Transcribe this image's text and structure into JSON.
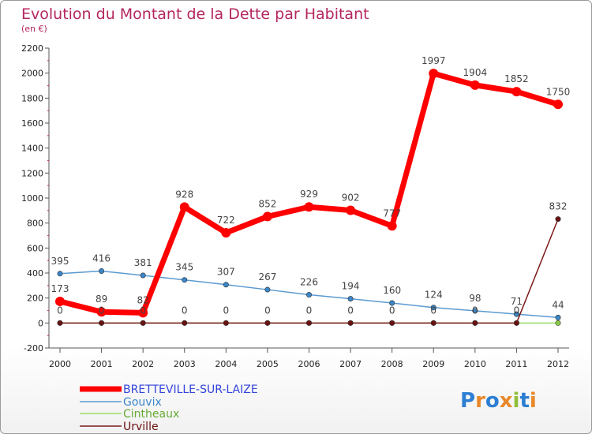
{
  "chart_data": {
    "type": "line",
    "title": "Evolution du Montant de la Dette par Habitant",
    "subtitle": "(en €)",
    "x": [
      "2000",
      "2001",
      "2002",
      "2003",
      "2004",
      "2005",
      "2006",
      "2007",
      "2008",
      "2009",
      "2010",
      "2011",
      "2012"
    ],
    "ylim": [
      -200,
      2200
    ],
    "yticks": [
      -200,
      0,
      200,
      400,
      600,
      800,
      1000,
      1200,
      1400,
      1600,
      1800,
      2000,
      2200
    ],
    "grid": false,
    "legend_position": "bottom-left",
    "series": [
      {
        "name": "BRETTEVILLE-SUR-LAIZE",
        "color": "#ff0000",
        "values": [
          173,
          89,
          82,
          928,
          722,
          852,
          929,
          902,
          777,
          1997,
          1904,
          1852,
          1750
        ],
        "labels": [
          "173",
          "89",
          "82",
          "928",
          "722",
          "852",
          "929",
          "902",
          "777",
          "1997",
          "1904",
          "1852",
          "1750"
        ]
      },
      {
        "name": "Gouvix",
        "color": "#5b9ad0",
        "values": [
          395,
          416,
          381,
          345,
          307,
          267,
          226,
          194,
          160,
          124,
          98,
          71,
          44
        ],
        "labels": [
          "395",
          "416",
          "381",
          "345",
          "307",
          "267",
          "226",
          "194",
          "160",
          "124",
          "98",
          "71",
          "44"
        ]
      },
      {
        "name": "Cintheaux",
        "color": "#99dd66",
        "values": [
          0,
          0,
          0,
          0,
          0,
          0,
          0,
          0,
          0,
          0,
          0,
          0,
          0
        ],
        "labels": [
          "0",
          "0",
          "0",
          "0",
          "0",
          "0",
          "0",
          "0",
          "0",
          "0",
          "0",
          "0",
          "0"
        ]
      },
      {
        "name": "Urville",
        "color": "#7a1a1a",
        "values": [
          0,
          0,
          0,
          0,
          0,
          0,
          0,
          0,
          0,
          0,
          0,
          0,
          832
        ],
        "labels": [
          "0",
          "0",
          "0",
          "0",
          "0",
          "0",
          "0",
          "0",
          "0",
          "0",
          "0",
          "0",
          "832"
        ]
      }
    ]
  },
  "logo": {
    "text": "Proxiti"
  }
}
